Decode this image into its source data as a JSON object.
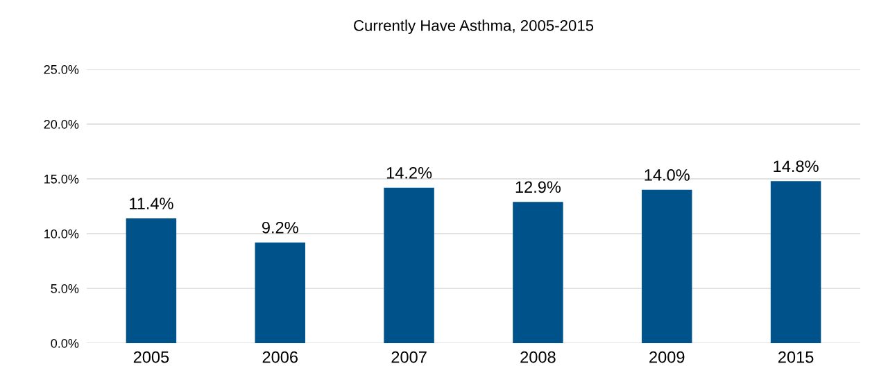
{
  "chart_data": {
    "type": "bar",
    "title": "Currently Have Asthma, 2005-2015",
    "categories": [
      "2005",
      "2006",
      "2007",
      "2008",
      "2009",
      "2015"
    ],
    "values": [
      11.4,
      9.2,
      14.2,
      12.9,
      14.0,
      14.8
    ],
    "value_labels": [
      "11.4%",
      "9.2%",
      "14.2%",
      "12.9%",
      "14.0%",
      "14.8%"
    ],
    "color": "#00538a",
    "ylim": [
      0,
      25
    ],
    "yticks": [
      {
        "value": 0,
        "label": "0.0%"
      },
      {
        "value": 5,
        "label": "5.0%"
      },
      {
        "value": 10,
        "label": "10.0%"
      },
      {
        "value": 15,
        "label": "15.0%"
      },
      {
        "value": 20,
        "label": "20.0%"
      },
      {
        "value": 25,
        "label": "25.0%"
      }
    ],
    "grid": "y"
  }
}
